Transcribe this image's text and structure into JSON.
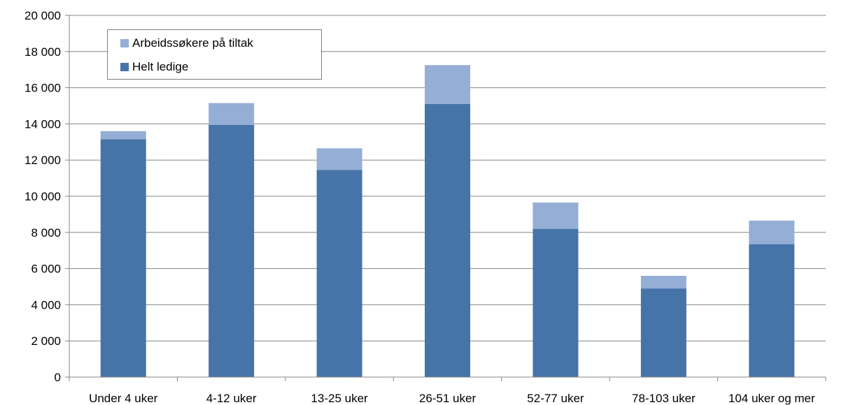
{
  "chart_data": {
    "type": "bar",
    "stacked": true,
    "categories": [
      "Under 4 uker",
      "4-12 uker",
      "13-25 uker",
      "26-51 uker",
      "52-77 uker",
      "78-103 uker",
      "104 uker og mer"
    ],
    "series": [
      {
        "name": "Helt ledige",
        "color": "#4674a9",
        "values": [
          13150,
          13950,
          11450,
          15100,
          8200,
          4900,
          7350
        ]
      },
      {
        "name": "Arbeidssøkere på tiltak",
        "color": "#95aed6",
        "values": [
          450,
          1200,
          1200,
          2150,
          1450,
          700,
          1300
        ]
      }
    ],
    "ylim": [
      0,
      20000
    ],
    "yticks": [
      0,
      2000,
      4000,
      6000,
      8000,
      10000,
      12000,
      14000,
      16000,
      18000,
      20000
    ],
    "ytick_labels": [
      "0",
      "2 000",
      "4 000",
      "6 000",
      "8 000",
      "10 000",
      "12 000",
      "14 000",
      "16 000",
      "18 000",
      "20 000"
    ],
    "grid": true,
    "legend_position": "top-left",
    "title": "",
    "xlabel": "",
    "ylabel": ""
  },
  "legend": {
    "items": [
      {
        "label": "Arbeidssøkere på tiltak",
        "color": "#95aed6"
      },
      {
        "label": "Helt ledige",
        "color": "#4674a9"
      }
    ]
  }
}
